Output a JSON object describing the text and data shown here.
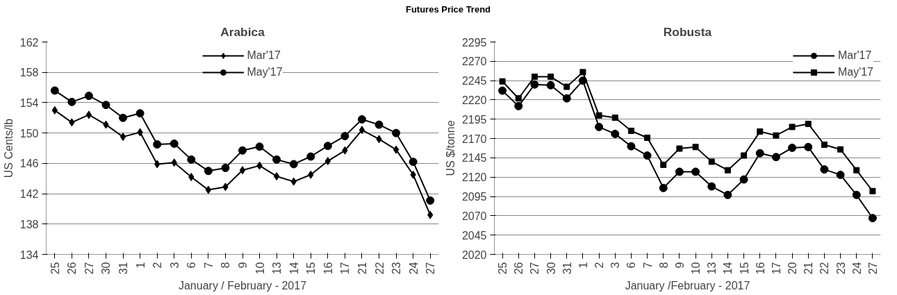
{
  "chart_data": [
    {
      "type": "line",
      "title": "Arabica",
      "annotations": [
        "Futures Price Trend"
      ],
      "xlabel": "January / February - 2017",
      "ylabel": "US Cents/lb",
      "categories": [
        "25",
        "26",
        "27",
        "30",
        "31",
        "1",
        "2",
        "3",
        "6",
        "7",
        "8",
        "9",
        "10",
        "13",
        "14",
        "15",
        "16",
        "17",
        "21",
        "22",
        "23",
        "24",
        "27"
      ],
      "series": [
        {
          "name": "Mar'17",
          "color": "#000000",
          "marker": "diamond",
          "values": [
            153,
            151.4,
            152.4,
            151.1,
            149.5,
            150.1,
            145.9,
            146.1,
            144.2,
            142.5,
            142.9,
            145.1,
            145.7,
            144.3,
            143.6,
            144.5,
            146.3,
            147.7,
            150.4,
            149.2,
            147.8,
            144.5,
            139.2
          ]
        },
        {
          "name": "May'17",
          "color": "#000000",
          "marker": "circle",
          "values": [
            155.6,
            154.1,
            154.9,
            153.7,
            152,
            152.6,
            148.5,
            148.6,
            146.5,
            145,
            145.4,
            147.7,
            148.2,
            146.5,
            145.9,
            146.9,
            148.3,
            149.6,
            151.8,
            151.1,
            150,
            146.2,
            141.1
          ]
        }
      ],
      "ylim": [
        134,
        162
      ],
      "yticks": [
        134,
        138,
        142,
        146,
        150,
        154,
        158,
        162
      ],
      "grid": "y",
      "legend": "top"
    },
    {
      "type": "line",
      "title": "Robusta",
      "xlabel": "January /February - 2017",
      "ylabel": "US $/tonne",
      "categories": [
        "25",
        "26",
        "27",
        "30",
        "31",
        "1",
        "2",
        "3",
        "6",
        "7",
        "8",
        "9",
        "10",
        "13",
        "14",
        "15",
        "16",
        "17",
        "20",
        "21",
        "22",
        "23",
        "24",
        "27"
      ],
      "series": [
        {
          "name": "Mar'17",
          "color": "#000000",
          "marker": "circle",
          "values": [
            2232,
            2212,
            2240,
            2239,
            2222,
            2245,
            2185,
            2176,
            2160,
            2148,
            2106,
            2127,
            2127,
            2108,
            2097,
            2117,
            2151,
            2146,
            2158,
            2159,
            2130,
            2123,
            2097,
            2067
          ]
        },
        {
          "name": "May'17",
          "color": "#000000",
          "marker": "square",
          "values": [
            2244,
            2222,
            2250,
            2250,
            2237,
            2256,
            2200,
            2197,
            2180,
            2171,
            2136,
            2157,
            2159,
            2140,
            2129,
            2148,
            2179,
            2174,
            2185,
            2189,
            2162,
            2156,
            2129,
            2102
          ]
        }
      ],
      "ylim": [
        2020,
        2295
      ],
      "yticks": [
        2020,
        2045,
        2070,
        2095,
        2120,
        2145,
        2170,
        2195,
        2220,
        2245,
        2270,
        2295
      ],
      "grid": "y",
      "legend": "top right"
    }
  ]
}
